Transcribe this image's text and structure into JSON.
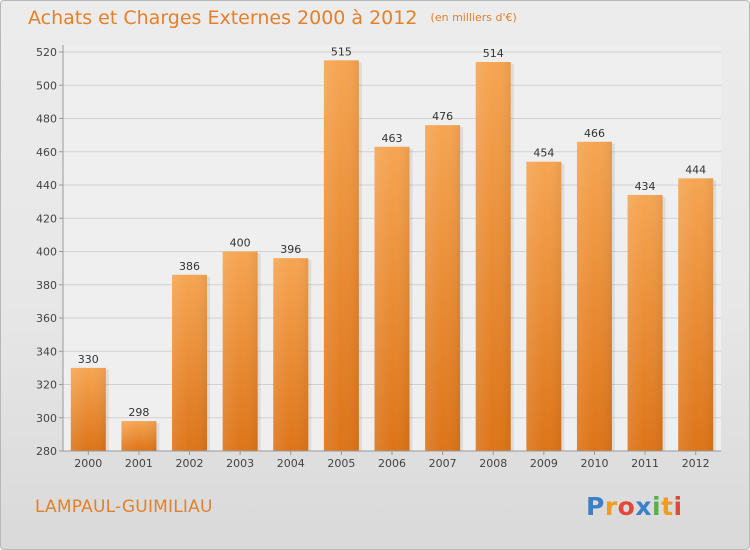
{
  "chart_data": {
    "type": "bar",
    "title": "Achats et Charges Externes 2000 à 2012",
    "subtitle": "(en milliers d'€)",
    "categories": [
      "2000",
      "2001",
      "2002",
      "2003",
      "2004",
      "2005",
      "2006",
      "2007",
      "2008",
      "2009",
      "2010",
      "2011",
      "2012"
    ],
    "values": [
      330,
      298,
      386,
      400,
      396,
      515,
      463,
      476,
      514,
      454,
      466,
      434,
      444
    ],
    "ylim": [
      280,
      520
    ],
    "yticks": [
      280,
      300,
      320,
      340,
      360,
      380,
      400,
      420,
      440,
      460,
      480,
      500,
      520
    ],
    "grid": true,
    "bar_color_top": "#f6a552",
    "bar_color_bottom": "#dd7418",
    "xlabel": "",
    "ylabel": ""
  },
  "footer": {
    "commune": "LAMPAUL-GUIMILIAU"
  },
  "logo": {
    "text": "Proxiti",
    "letters": [
      "P",
      "r",
      "o",
      "x",
      "i",
      "t",
      "i"
    ],
    "colors": [
      "#3a82c8",
      "#f39a1f",
      "#e04a3c",
      "#3a82c8",
      "#58b24a",
      "#f39a1f",
      "#e04a3c"
    ]
  }
}
